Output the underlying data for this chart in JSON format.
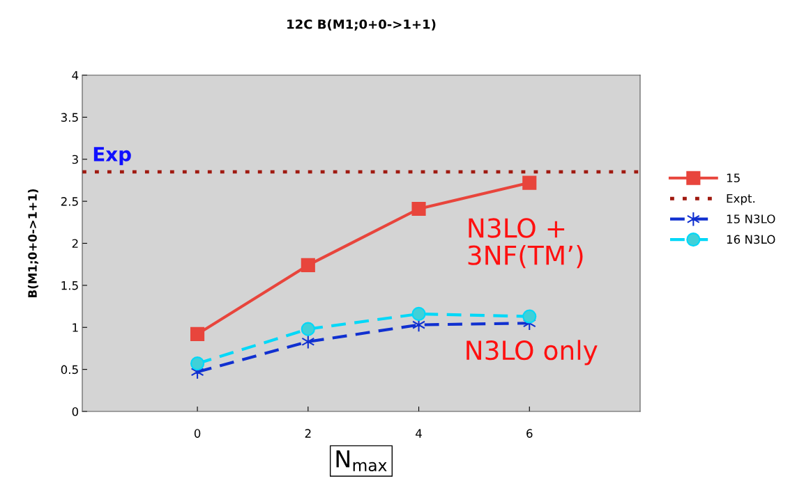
{
  "chart_data": {
    "type": "line",
    "title": "12C B(M1;0+0->1+1)",
    "ylabel": "B(M1;0+0->1+1)",
    "xlabel": "N$_{max}$",
    "categories": [
      "0",
      "2",
      "4",
      "6"
    ],
    "series": [
      {
        "name": "15",
        "color": "#e8453c",
        "marker": "square",
        "line_style": "solid",
        "values": [
          0.92,
          1.74,
          2.41,
          2.72
        ]
      },
      {
        "name": "15 N3LO",
        "color": "#1030d0",
        "marker": "cross",
        "line_style": "dashed",
        "values": [
          0.47,
          0.83,
          1.03,
          1.05
        ]
      },
      {
        "name": "16 N3LO",
        "color": "#00d8f8",
        "marker": "circle",
        "line_style": "dashed",
        "values": [
          0.57,
          0.98,
          1.16,
          1.13
        ]
      }
    ],
    "ref_lines": [
      {
        "axis": "y",
        "value": 2.85,
        "label": "Expt.",
        "color": "#a01a10",
        "line_style": "dotted"
      }
    ],
    "annotations": [
      "Exp",
      "N3LO +\n3NF(TM’)",
      "N3LO only"
    ],
    "ylim": [
      0,
      4
    ],
    "yticks": [
      0,
      0.5,
      1,
      1.5,
      2,
      2.5,
      3,
      3.5,
      4
    ],
    "grid": false,
    "legend": "right"
  }
}
